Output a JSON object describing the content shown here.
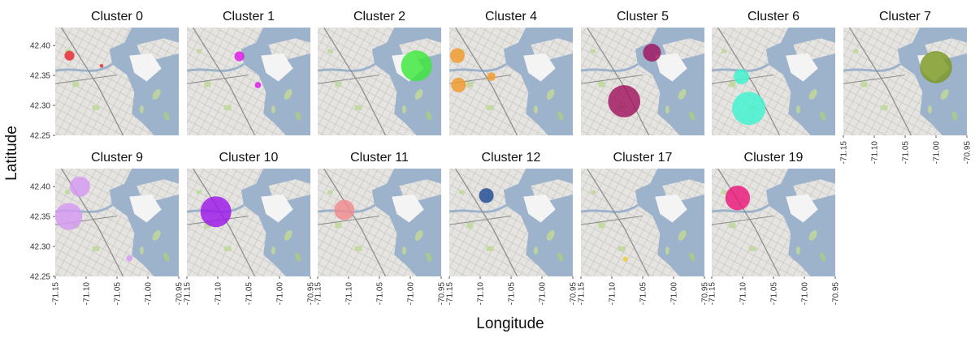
{
  "chart_data": {
    "type": "scatter",
    "description": "Faceted bubble map of cluster centers over a city basemap",
    "xlabel": "Longitude",
    "ylabel": "Latitude",
    "xlim": [
      -71.15,
      -70.95
    ],
    "ylim": [
      42.25,
      42.43
    ],
    "x_ticks": [
      "-71.15",
      "-71.10",
      "-71.05",
      "-71.00",
      "-70.95"
    ],
    "y_ticks": [
      "42.40",
      "42.35",
      "42.30",
      "42.25"
    ],
    "grid": false,
    "legend": "none",
    "facets": [
      {
        "title": "Cluster 0",
        "color": "#e8282f",
        "points": [
          {
            "lon": -71.127,
            "lat": 42.383,
            "size": 0.16
          },
          {
            "lon": -71.075,
            "lat": 42.366,
            "size": 0.06
          }
        ]
      },
      {
        "title": "Cluster 1",
        "color": "#e016e8",
        "points": [
          {
            "lon": -71.065,
            "lat": 42.382,
            "size": 0.16
          },
          {
            "lon": -71.035,
            "lat": 42.334,
            "size": 0.1
          }
        ]
      },
      {
        "title": "Cluster 2",
        "color": "#3ce83a",
        "points": [
          {
            "lon": -70.99,
            "lat": 42.366,
            "size": 0.5
          }
        ]
      },
      {
        "title": "Cluster 4",
        "color": "#f29a2a",
        "points": [
          {
            "lon": -71.137,
            "lat": 42.383,
            "size": 0.24
          },
          {
            "lon": -71.135,
            "lat": 42.334,
            "size": 0.24
          },
          {
            "lon": -71.082,
            "lat": 42.348,
            "size": 0.14
          }
        ]
      },
      {
        "title": "Cluster 5",
        "color": "#a0145e",
        "points": [
          {
            "lon": -71.035,
            "lat": 42.388,
            "size": 0.29
          },
          {
            "lon": -71.08,
            "lat": 42.307,
            "size": 0.52
          }
        ]
      },
      {
        "title": "Cluster 6",
        "color": "#3ef4cf",
        "points": [
          {
            "lon": -71.102,
            "lat": 42.348,
            "size": 0.25
          },
          {
            "lon": -71.09,
            "lat": 42.295,
            "size": 0.54
          }
        ]
      },
      {
        "title": "Cluster 7",
        "color": "#7c9822",
        "points": [
          {
            "lon": -71.0,
            "lat": 42.364,
            "size": 0.52
          }
        ]
      },
      {
        "title": "Cluster 9",
        "color": "#d49af2",
        "points": [
          {
            "lon": -71.11,
            "lat": 42.4,
            "size": 0.33
          },
          {
            "lon": -71.128,
            "lat": 42.35,
            "size": 0.44
          },
          {
            "lon": -71.03,
            "lat": 42.28,
            "size": 0.1
          }
        ]
      },
      {
        "title": "Cluster 10",
        "color": "#9c16ea",
        "points": [
          {
            "lon": -71.103,
            "lat": 42.358,
            "size": 0.5
          }
        ]
      },
      {
        "title": "Cluster 11",
        "color": "#f28b8f",
        "points": [
          {
            "lon": -71.107,
            "lat": 42.361,
            "size": 0.33
          }
        ]
      },
      {
        "title": "Cluster 12",
        "color": "#1d4a92",
        "points": [
          {
            "lon": -71.09,
            "lat": 42.385,
            "size": 0.24
          }
        ]
      },
      {
        "title": "Cluster 17",
        "color": "#f2c92e",
        "points": [
          {
            "lon": -71.078,
            "lat": 42.279,
            "size": 0.08
          }
        ]
      },
      {
        "title": "Cluster 19",
        "color": "#ea167a",
        "points": [
          {
            "lon": -71.108,
            "lat": 42.381,
            "size": 0.4
          }
        ]
      }
    ]
  }
}
